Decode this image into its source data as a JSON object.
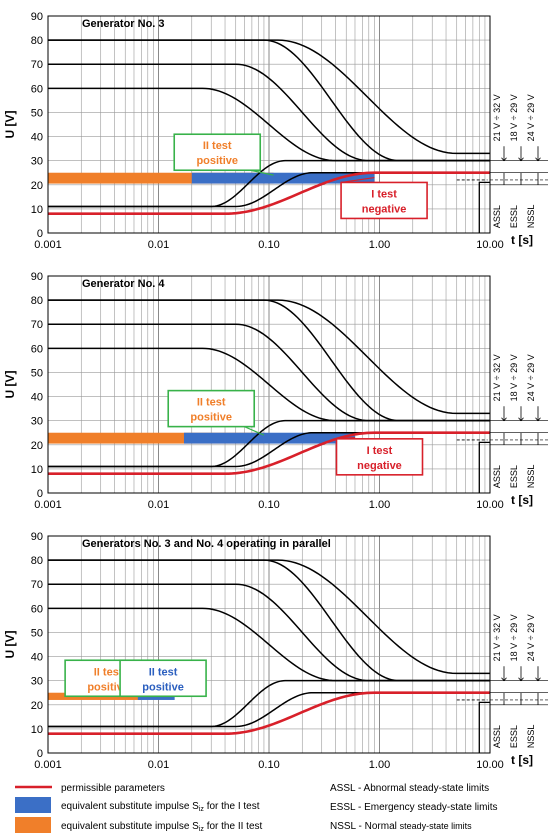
{
  "colors": {
    "permissible": "#d8202a",
    "impulse_I": "#3b6fc6",
    "impulse_II": "#f07f2a",
    "box_green": "#38b24a",
    "box_red": "#d8202a",
    "label_orange": "#f07f2a",
    "label_red": "#d8202a",
    "label_blue": "#2b5fbf"
  },
  "legend": {
    "permissible": "permissible parameters",
    "impulse_I_prefix": "equivalent substitute impulse S",
    "impulse_I_sub": "iz",
    "impulse_I_suffix": " for the I test",
    "impulse_II_prefix": "equivalent substitute impulse S",
    "impulse_II_sub": "iz",
    "impulse_II_suffix": " for the II test",
    "assl": "ASSL - Abnormal steady-state limits",
    "essl": "ESSL - Emergency steady-state limits",
    "nssl_main": "NSSL - Normal ",
    "nssl_small": "steady-state limits"
  },
  "chart_data": [
    {
      "type": "line",
      "title": "Generator No. 3",
      "ylabel": "U [V]",
      "xlabel": "t [s]",
      "x_scale": "log",
      "xlim": [
        0.001,
        10
      ],
      "ylim": [
        0,
        90
      ],
      "x_ticks": [
        "0.001",
        "0.01",
        "0.10",
        "1.00",
        "10.00"
      ],
      "y_ticks": [
        "0",
        "10",
        "20",
        "30",
        "40",
        "50",
        "60",
        "70",
        "80",
        "90"
      ],
      "grid": true,
      "side_labels": [
        "21 V ÷ 32 V",
        "18 V ÷ 29 V",
        "24 V ÷ 29 V",
        "ASSL",
        "ESSL",
        "NSSL"
      ],
      "upper_limits": [
        {
          "start": 80,
          "end": 30,
          "t_start": 0.09,
          "t_end": 1.5
        },
        {
          "start": 70,
          "end": 30,
          "t_start": 0.05,
          "t_end": 0.8
        },
        {
          "start": 60,
          "end": 30,
          "t_start": 0.025,
          "t_end": 0.4
        },
        {
          "start": 80,
          "end": 33,
          "t_start": 0.12,
          "t_end": 5.0
        }
      ],
      "lower_limits": [
        {
          "start": 11,
          "end": 30,
          "t_start": 0.03,
          "t_end": 0.14
        },
        {
          "start": 11,
          "end": 25,
          "t_start": 0.05,
          "t_end": 0.25
        }
      ],
      "permissible": {
        "start": 8,
        "end": 25,
        "t_start": 0.04,
        "t_end": 0.9
      },
      "impulses_II": [
        {
          "t_from": 0.001,
          "t_to": 0.11,
          "u_from": 20.5,
          "u_to": 25
        }
      ],
      "impulses_I": [
        {
          "t_from": 0.02,
          "t_to": 0.9,
          "u_from": 20.5,
          "u_to": 25
        }
      ],
      "labels": [
        {
          "line1": "II test",
          "line2": "positive",
          "t": 0.034,
          "u": 33.5,
          "box": "box_green",
          "text": "label_orange",
          "pointer_t": 0.11,
          "pointer_u": 24
        },
        {
          "line1": "I test",
          "line2": "negative",
          "t": 1.1,
          "u": 13.5,
          "box": "box_red",
          "text": "label_red",
          "pointer_t": 0.9,
          "pointer_u": 23
        }
      ]
    },
    {
      "type": "line",
      "title": "Generator No. 4",
      "ylabel": "U [V]",
      "xlabel": "t [s]",
      "x_scale": "log",
      "xlim": [
        0.001,
        10
      ],
      "ylim": [
        0,
        90
      ],
      "x_ticks": [
        "0.001",
        "0.01",
        "0.10",
        "1.00",
        "10.00"
      ],
      "y_ticks": [
        "0",
        "10",
        "20",
        "30",
        "40",
        "50",
        "60",
        "70",
        "80",
        "90"
      ],
      "grid": true,
      "side_labels": [
        "21 V ÷ 32 V",
        "18 V ÷ 29 V",
        "24 V ÷ 29 V",
        "ASSL",
        "ESSL",
        "NSSL"
      ],
      "upper_limits": [
        {
          "start": 80,
          "end": 30,
          "t_start": 0.09,
          "t_end": 1.5
        },
        {
          "start": 70,
          "end": 30,
          "t_start": 0.05,
          "t_end": 0.8
        },
        {
          "start": 60,
          "end": 30,
          "t_start": 0.025,
          "t_end": 0.4
        },
        {
          "start": 80,
          "end": 33,
          "t_start": 0.12,
          "t_end": 5.0
        }
      ],
      "lower_limits": [
        {
          "start": 11,
          "end": 30,
          "t_start": 0.03,
          "t_end": 0.14
        },
        {
          "start": 11,
          "end": 25,
          "t_start": 0.05,
          "t_end": 0.25
        }
      ],
      "permissible": {
        "start": 8,
        "end": 25,
        "t_start": 0.04,
        "t_end": 0.9
      },
      "impulses_II": [
        {
          "t_from": 0.001,
          "t_to": 0.09,
          "u_from": 20.5,
          "u_to": 25
        }
      ],
      "impulses_I": [
        {
          "t_from": 0.017,
          "t_to": 0.6,
          "u_from": 20.5,
          "u_to": 25
        }
      ],
      "labels": [
        {
          "line1": "II test",
          "line2": "positive",
          "t": 0.03,
          "u": 35,
          "box": "box_green",
          "text": "label_orange",
          "pointer_t": 0.09,
          "pointer_u": 24
        },
        {
          "line1": "I test",
          "line2": "negative",
          "t": 1.0,
          "u": 15,
          "box": "box_red",
          "text": "label_red",
          "pointer_t": 0.6,
          "pointer_u": 23
        }
      ]
    },
    {
      "type": "line",
      "title": "Generators No. 3 and No. 4 operating in parallel",
      "ylabel": "U [V]",
      "xlabel": "t [s]",
      "x_scale": "log",
      "xlim": [
        0.001,
        10
      ],
      "ylim": [
        0,
        90
      ],
      "x_ticks": [
        "0.001",
        "0.01",
        "0.10",
        "1.00",
        "10.00"
      ],
      "y_ticks": [
        "0",
        "10",
        "20",
        "30",
        "40",
        "50",
        "60",
        "70",
        "80",
        "90"
      ],
      "grid": true,
      "side_labels": [
        "21 V ÷ 32 V",
        "18 V ÷ 29 V",
        "24 V ÷ 29 V",
        "ASSL",
        "ESSL",
        "NSSL"
      ],
      "upper_limits": [
        {
          "start": 80,
          "end": 30,
          "t_start": 0.09,
          "t_end": 1.5
        },
        {
          "start": 70,
          "end": 30,
          "t_start": 0.05,
          "t_end": 0.8
        },
        {
          "start": 60,
          "end": 30,
          "t_start": 0.025,
          "t_end": 0.4
        },
        {
          "start": 80,
          "end": 33,
          "t_start": 0.12,
          "t_end": 5.0
        }
      ],
      "lower_limits": [
        {
          "start": 11,
          "end": 30,
          "t_start": 0.03,
          "t_end": 0.14
        },
        {
          "start": 11,
          "end": 25,
          "t_start": 0.05,
          "t_end": 0.25
        }
      ],
      "permissible": {
        "start": 8,
        "end": 25,
        "t_start": 0.04,
        "t_end": 0.9
      },
      "impulses_II": [
        {
          "t_from": 0.001,
          "t_to": 0.007,
          "u_from": 22,
          "u_to": 25
        }
      ],
      "impulses_I": [
        {
          "t_from": 0.0065,
          "t_to": 0.014,
          "u_from": 22,
          "u_to": 25
        }
      ],
      "labels": [
        {
          "line1": "II test",
          "line2": "positive",
          "t": 0.0035,
          "u": 31,
          "box": "box_green",
          "text": "label_orange",
          "pointer_t": 0.005,
          "pointer_u": 25
        },
        {
          "line1": "II test",
          "line2": "positive",
          "t": 0.011,
          "u": 31,
          "box": "box_green",
          "text": "label_blue",
          "pointer_t": 0.011,
          "pointer_u": 25
        }
      ]
    }
  ]
}
